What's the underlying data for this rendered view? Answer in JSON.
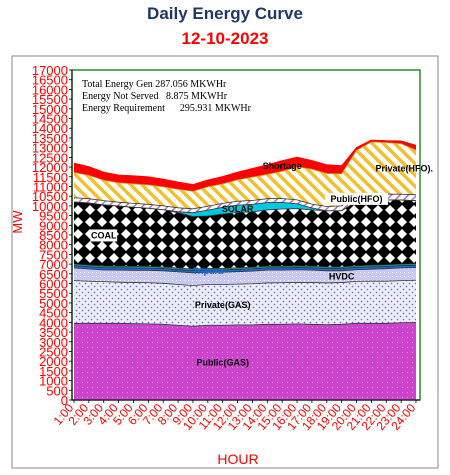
{
  "title": "Daily Energy Curve",
  "subtitle": "12-10-2023",
  "chart_data": {
    "type": "area",
    "stacked": true,
    "ylabel": "MW",
    "xlabel": "HOUR",
    "ylim": [
      0,
      17000
    ],
    "yticks": [
      0,
      500,
      1000,
      1500,
      2000,
      2500,
      3000,
      3500,
      4000,
      4500,
      5000,
      5500,
      6000,
      6500,
      7000,
      7500,
      8000,
      8500,
      9000,
      9500,
      10000,
      10500,
      11000,
      11500,
      12000,
      12500,
      13000,
      13500,
      14000,
      14500,
      15000,
      15500,
      16000,
      16500,
      17000
    ],
    "x": [
      "1:00",
      "2:00",
      "3:00",
      "4:00",
      "5:00",
      "6:00",
      "7:00",
      "8:00",
      "9:00",
      "10:00",
      "11:00",
      "12:00",
      "13:00",
      "14:00",
      "15:00",
      "16:00",
      "17:00",
      "18:00",
      "19:00",
      "20:00",
      "21:00",
      "22:00",
      "23:00",
      "24:00"
    ],
    "annotations": [
      "Total Energy Gen 287.056 MKWHr",
      "Energy Not Served   8.875 MKWHr",
      "Energy Requirement      295.931 MKWHr"
    ],
    "series": [
      {
        "name": "Public(GAS)",
        "color": "#cc44cc",
        "values": [
          3950,
          3950,
          3950,
          3950,
          3930,
          3920,
          3900,
          3850,
          3800,
          3850,
          3850,
          3870,
          3870,
          3900,
          3900,
          3920,
          3900,
          3880,
          3900,
          3950,
          3950,
          3950,
          3980,
          4000
        ]
      },
      {
        "name": "Private(GAS)",
        "color": "#7f9fe0",
        "values": [
          2200,
          2170,
          2150,
          2120,
          2120,
          2120,
          2110,
          2100,
          2100,
          2100,
          2100,
          2100,
          2120,
          2130,
          2140,
          2140,
          2150,
          2150,
          2150,
          2160,
          2170,
          2170,
          2170,
          2170
        ]
      },
      {
        "name": "HVDC",
        "color": "#c8c8f0",
        "values": [
          650,
          630,
          600,
          620,
          630,
          640,
          640,
          650,
          650,
          630,
          630,
          640,
          650,
          660,
          650,
          650,
          640,
          620,
          600,
          600,
          620,
          640,
          650,
          650
        ]
      },
      {
        "name": "Tripura",
        "color": "#1e64d2",
        "values": [
          120,
          120,
          120,
          120,
          120,
          120,
          120,
          120,
          120,
          120,
          120,
          120,
          120,
          120,
          120,
          120,
          120,
          120,
          120,
          120,
          120,
          120,
          120,
          120
        ]
      },
      {
        "name": "",
        "color": "#00b0b0",
        "values": [
          80,
          80,
          80,
          80,
          80,
          80,
          80,
          80,
          80,
          80,
          80,
          80,
          80,
          80,
          80,
          80,
          80,
          80,
          80,
          80,
          80,
          80,
          80,
          80
        ]
      },
      {
        "name": "COAL",
        "color": "#000000",
        "values": [
          3200,
          3200,
          3150,
          3100,
          3050,
          3000,
          2950,
          2850,
          2700,
          2700,
          2800,
          2850,
          2850,
          2900,
          2950,
          2950,
          2900,
          2900,
          2900,
          3300,
          3350,
          3350,
          3300,
          3250
        ]
      },
      {
        "name": "SOLAR",
        "color": "#00c8e0",
        "values": [
          0,
          0,
          0,
          0,
          0,
          0,
          0,
          50,
          200,
          300,
          350,
          380,
          390,
          380,
          340,
          250,
          100,
          0,
          0,
          0,
          0,
          0,
          0,
          0
        ]
      },
      {
        "name": "Public(HFO)",
        "color": "#d9a6e0",
        "values": [
          220,
          220,
          220,
          200,
          200,
          200,
          200,
          200,
          200,
          200,
          200,
          200,
          200,
          200,
          200,
          200,
          200,
          220,
          250,
          300,
          300,
          300,
          300,
          300
        ]
      },
      {
        "name": "Private(HFO).",
        "color": "#f0c030",
        "values": [
          1300,
          1200,
          1050,
          1000,
          1000,
          1000,
          980,
          950,
          900,
          1000,
          1000,
          1100,
          1200,
          1250,
          1400,
          1700,
          1800,
          1700,
          1650,
          2350,
          2700,
          2650,
          2600,
          2300
        ]
      },
      {
        "name": "Shortage",
        "color": "#ff0000",
        "values": [
          480,
          450,
          420,
          400,
          420,
          420,
          400,
          380,
          350,
          350,
          380,
          400,
          450,
          500,
          550,
          500,
          450,
          450,
          420,
          150,
          100,
          100,
          150,
          250
        ]
      }
    ]
  }
}
